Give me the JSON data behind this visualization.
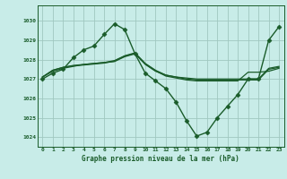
{
  "xlabel": "Graphe pression niveau de la mer (hPa)",
  "bg_color": "#c8ece8",
  "grid_color": "#a0c8c0",
  "line_color": "#1a5c2a",
  "xlim": [
    -0.5,
    23.5
  ],
  "ylim": [
    1023.5,
    1030.8
  ],
  "yticks": [
    1024,
    1025,
    1026,
    1027,
    1028,
    1029,
    1030
  ],
  "xticks": [
    0,
    1,
    2,
    3,
    4,
    5,
    6,
    7,
    8,
    9,
    10,
    11,
    12,
    13,
    14,
    15,
    16,
    17,
    18,
    19,
    20,
    21,
    22,
    23
  ],
  "series": [
    {
      "x": [
        0,
        1,
        2,
        3,
        4,
        5,
        6,
        7,
        8,
        9,
        10,
        11,
        12,
        13,
        14,
        15,
        16,
        17,
        18,
        19,
        20,
        21,
        22,
        23
      ],
      "y": [
        1027.0,
        1027.3,
        1027.5,
        1028.1,
        1028.5,
        1028.7,
        1029.3,
        1029.85,
        1029.55,
        1028.3,
        1027.3,
        1026.9,
        1026.5,
        1025.8,
        1024.85,
        1024.05,
        1024.25,
        1025.0,
        1025.6,
        1026.2,
        1027.0,
        1027.0,
        1029.0,
        1029.7
      ],
      "marker": "D",
      "markersize": 2.5,
      "linewidth": 1.0
    },
    {
      "x": [
        0,
        1,
        2,
        3,
        4,
        5,
        6,
        7,
        8,
        9,
        10,
        11,
        12,
        13,
        14,
        15,
        16,
        17,
        18,
        19,
        20,
        21,
        22,
        23
      ],
      "y": [
        1027.1,
        1027.4,
        1027.55,
        1027.65,
        1027.75,
        1027.8,
        1027.85,
        1027.9,
        1028.15,
        1028.3,
        1027.75,
        1027.4,
        1027.2,
        1027.1,
        1027.05,
        1027.0,
        1027.0,
        1027.0,
        1027.0,
        1027.0,
        1027.0,
        1027.0,
        1027.55,
        1027.65
      ],
      "marker": null,
      "markersize": 0,
      "linewidth": 0.9
    },
    {
      "x": [
        0,
        1,
        2,
        3,
        4,
        5,
        6,
        7,
        8,
        9,
        10,
        11,
        12,
        13,
        14,
        15,
        16,
        17,
        18,
        19,
        20,
        21,
        22,
        23
      ],
      "y": [
        1027.1,
        1027.45,
        1027.6,
        1027.7,
        1027.75,
        1027.8,
        1027.85,
        1027.95,
        1028.2,
        1028.35,
        1027.8,
        1027.45,
        1027.2,
        1027.1,
        1027.0,
        1026.95,
        1026.95,
        1026.95,
        1026.95,
        1026.95,
        1026.95,
        1026.95,
        1027.5,
        1027.6
      ],
      "marker": null,
      "markersize": 0,
      "linewidth": 0.9
    },
    {
      "x": [
        0,
        1,
        2,
        3,
        4,
        5,
        6,
        7,
        8,
        9,
        10,
        11,
        12,
        13,
        14,
        15,
        16,
        17,
        18,
        19,
        20,
        21,
        22,
        23
      ],
      "y": [
        1027.1,
        1027.45,
        1027.6,
        1027.68,
        1027.72,
        1027.77,
        1027.82,
        1027.92,
        1028.18,
        1028.32,
        1027.78,
        1027.42,
        1027.15,
        1027.05,
        1026.95,
        1026.9,
        1026.9,
        1026.9,
        1026.9,
        1026.9,
        1027.35,
        1027.35,
        1027.4,
        1027.55
      ],
      "marker": null,
      "markersize": 0,
      "linewidth": 0.9
    }
  ]
}
